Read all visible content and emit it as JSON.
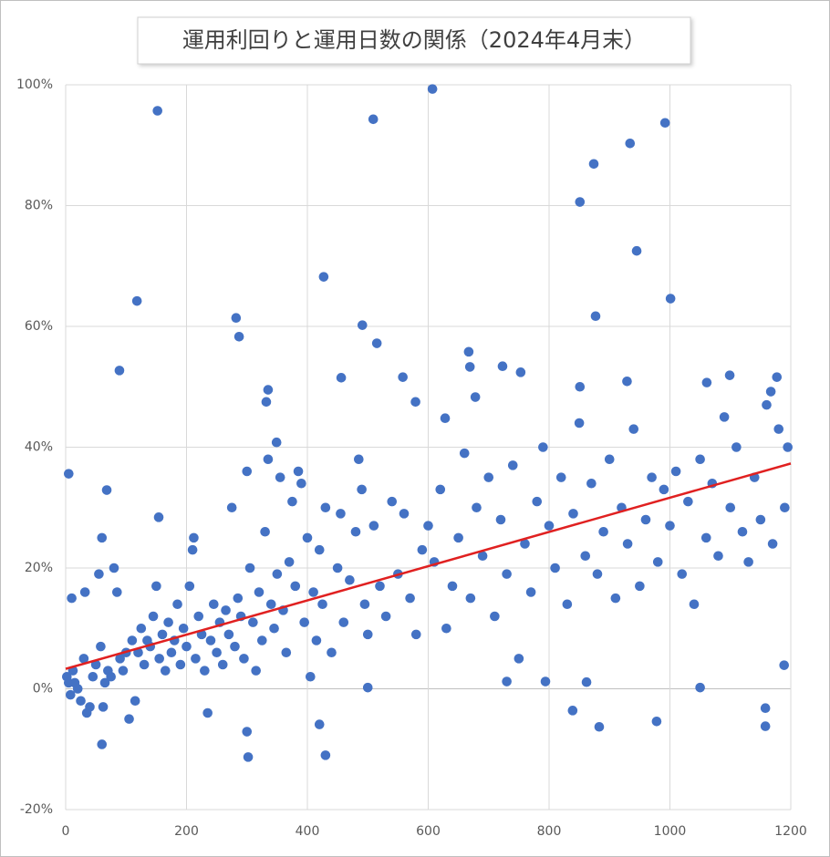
{
  "chart_data": {
    "type": "scatter",
    "title": "運用利回りと運用日数の関係（2024年4月末）",
    "color": "#4472c4",
    "grid": true,
    "xlim": [
      0,
      1200
    ],
    "xticks": [
      0,
      200,
      400,
      600,
      800,
      1000,
      1200
    ],
    "ylim": [
      -20,
      100
    ],
    "yticks": [
      {
        "value": -20,
        "label": "-20%"
      },
      {
        "value": 0,
        "label": "0%"
      },
      {
        "value": 20,
        "label": "20%"
      },
      {
        "value": 40,
        "label": "40%"
      },
      {
        "value": 60,
        "label": "60%"
      },
      {
        "value": 80,
        "label": "80%"
      },
      {
        "value": 100,
        "label": "100%"
      }
    ],
    "x": [
      5,
      152,
      607,
      509,
      118,
      282,
      287,
      427,
      491,
      515,
      89,
      154,
      68,
      851,
      874,
      934,
      945,
      992,
      1001,
      877,
      669,
      723,
      753,
      558,
      456,
      579,
      628,
      667,
      678,
      929,
      1061,
      1099,
      1177,
      1167,
      851,
      335,
      332,
      349,
      60,
      302,
      300,
      420,
      430,
      839,
      883,
      978,
      1158,
      1158,
      1050,
      500,
      1189,
      730,
      794,
      862,
      2,
      5,
      8,
      10,
      12,
      15,
      20,
      25,
      30,
      32,
      35,
      40,
      45,
      50,
      55,
      58,
      60,
      62,
      65,
      70,
      75,
      80,
      85,
      90,
      95,
      100,
      105,
      110,
      115,
      120,
      125,
      130,
      135,
      140,
      145,
      150,
      155,
      160,
      165,
      170,
      175,
      180,
      185,
      190,
      195,
      200,
      205,
      210,
      212,
      215,
      220,
      225,
      230,
      235,
      240,
      245,
      250,
      255,
      260,
      265,
      270,
      275,
      280,
      285,
      290,
      295,
      300,
      305,
      310,
      315,
      320,
      325,
      330,
      335,
      340,
      345,
      350,
      355,
      360,
      365,
      370,
      375,
      380,
      385,
      390,
      395,
      400,
      405,
      410,
      415,
      420,
      425,
      430,
      440,
      450,
      455,
      460,
      470,
      480,
      485,
      490,
      495,
      500,
      510,
      520,
      530,
      540,
      550,
      560,
      570,
      580,
      590,
      600,
      610,
      620,
      630,
      640,
      650,
      660,
      670,
      680,
      690,
      700,
      710,
      720,
      730,
      740,
      750,
      760,
      770,
      780,
      790,
      800,
      810,
      820,
      830,
      840,
      850,
      860,
      870,
      880,
      890,
      900,
      910,
      920,
      930,
      940,
      950,
      960,
      970,
      980,
      990,
      1000,
      1010,
      1020,
      1030,
      1040,
      1050,
      1060,
      1070,
      1080,
      1090,
      1100,
      1110,
      1120,
      1130,
      1140,
      1150,
      1160,
      1170,
      1180,
      1190,
      1195
    ],
    "values": [
      35.6,
      95.7,
      99.3,
      94.3,
      64.2,
      61.4,
      58.3,
      68.2,
      60.2,
      57.2,
      52.7,
      28.4,
      32.9,
      80.6,
      86.9,
      90.3,
      72.5,
      93.7,
      64.6,
      61.7,
      53.3,
      53.4,
      52.4,
      51.6,
      51.5,
      47.5,
      44.8,
      55.8,
      48.3,
      50.9,
      50.7,
      51.9,
      51.6,
      49.2,
      50.0,
      49.5,
      47.5,
      40.8,
      -9.2,
      -11.3,
      -7.1,
      -5.9,
      -11.0,
      -3.6,
      -6.3,
      -5.4,
      -3.2,
      -6.2,
      0.2,
      0.2,
      3.9,
      1.2,
      1.2,
      1.1,
      2,
      1,
      -1,
      15,
      3,
      1,
      0,
      -2,
      5,
      16,
      -4,
      -3,
      2,
      4,
      19,
      7,
      25,
      -3,
      1,
      3,
      2,
      20,
      16,
      5,
      3,
      6,
      -5,
      8,
      -2,
      6,
      10,
      4,
      8,
      7,
      12,
      17,
      5,
      9,
      3,
      11,
      6,
      8,
      14,
      4,
      10,
      7,
      17,
      23,
      25,
      5,
      12,
      9,
      3,
      -4,
      8,
      14,
      6,
      11,
      4,
      13,
      9,
      30,
      7,
      15,
      12,
      5,
      36,
      20,
      11,
      3,
      16,
      8,
      26,
      38,
      14,
      10,
      19,
      35,
      13,
      6,
      21,
      31,
      17,
      36,
      34,
      11,
      25,
      2,
      16,
      8,
      23,
      14,
      30,
      6,
      20,
      29,
      11,
      18,
      26,
      38,
      33,
      14,
      9,
      27,
      17,
      12,
      31,
      19,
      29,
      15,
      9,
      23,
      27,
      21,
      33,
      10,
      17,
      25,
      39,
      15,
      30,
      22,
      35,
      12,
      28,
      19,
      37,
      5,
      24,
      16,
      31,
      40,
      27,
      20,
      35,
      14,
      29,
      44,
      22,
      34,
      19,
      26,
      38,
      15,
      30,
      24,
      43,
      17,
      28,
      35,
      21,
      33,
      27,
      36,
      19,
      31,
      14,
      38,
      25,
      34,
      22,
      45,
      30,
      40,
      26,
      21,
      35,
      28,
      47,
      24,
      43,
      30,
      40
    ],
    "trendline": {
      "x": [
        0,
        1200
      ],
      "values": [
        3.3,
        37.3
      ],
      "color": "#e02020"
    }
  }
}
